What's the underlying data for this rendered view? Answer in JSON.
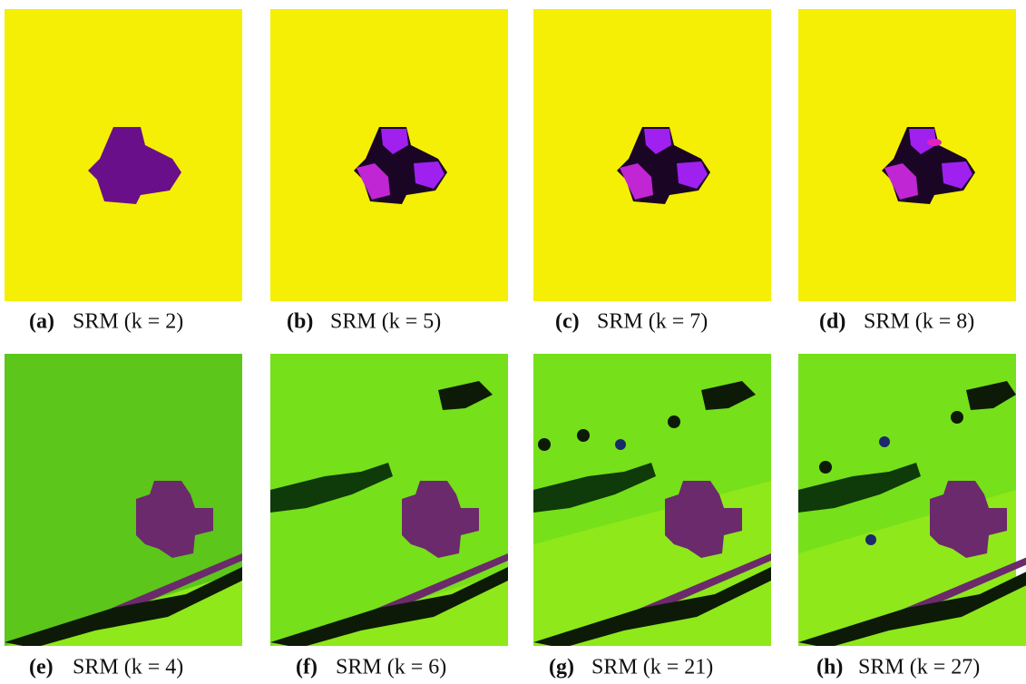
{
  "figure": {
    "panels": [
      {
        "label": "(a)",
        "caption": "SRM (k = 2)"
      },
      {
        "label": "(b)",
        "caption": "SRM (k = 5)"
      },
      {
        "label": "(c)",
        "caption": "SRM (k = 7)"
      },
      {
        "label": "(d)",
        "caption": "SRM (k = 8)"
      },
      {
        "label": "(e)",
        "caption": "SRM (k = 4)"
      },
      {
        "label": "(f)",
        "caption": "SRM (k = 6)"
      },
      {
        "label": "(g)",
        "caption": "SRM (k = 21)"
      },
      {
        "label": "(h)",
        "caption": "SRM (k = 27)"
      }
    ]
  }
}
